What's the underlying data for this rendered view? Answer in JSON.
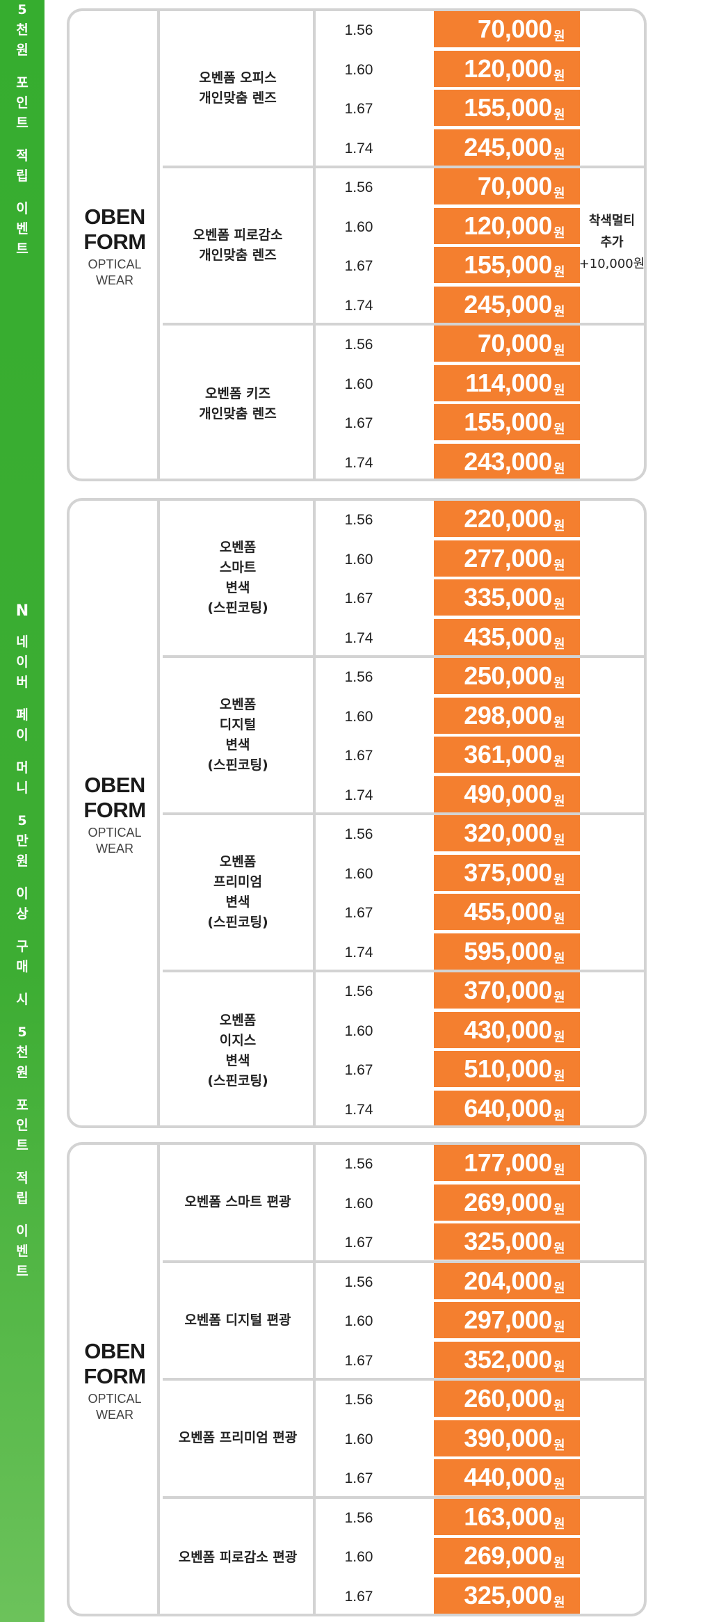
{
  "banner_top": [
    "5",
    "천",
    "원",
    "",
    "포",
    "인",
    "트",
    "",
    "적",
    "립",
    "",
    "이",
    "벤",
    "트"
  ],
  "banner_logo": "N",
  "banner_bottom": [
    "네",
    "이",
    "버",
    "",
    "페",
    "이",
    "",
    "머",
    "니",
    "",
    "5",
    "만",
    "원",
    "",
    "이",
    "상",
    "",
    "구",
    "매",
    "",
    "시",
    "",
    "5",
    "천",
    "원",
    "",
    "포",
    "인",
    "트",
    "",
    "적",
    "립",
    "",
    "이",
    "벤",
    "트"
  ],
  "sections": [
    {
      "brand": {
        "line1": "OBEN",
        "line2": "FORM",
        "line3": "OPTICAL",
        "line4": "WEAR"
      },
      "groups": [
        {
          "name": "오벤폼 오피스\n개인맞춤 렌즈",
          "rows": [
            {
              "index": "1.56",
              "price": "70,000"
            },
            {
              "index": "1.60",
              "price": "120,000"
            },
            {
              "index": "1.67",
              "price": "155,000"
            },
            {
              "index": "1.74",
              "price": "245,000"
            }
          ]
        },
        {
          "name": "오벤폼 피로감소\n개인맞춤 렌즈",
          "rows": [
            {
              "index": "1.56",
              "price": "70,000"
            },
            {
              "index": "1.60",
              "price": "120,000"
            },
            {
              "index": "1.67",
              "price": "155,000"
            },
            {
              "index": "1.74",
              "price": "245,000"
            }
          ]
        },
        {
          "name": "오벤폼 키즈\n개인맞춤 렌즈",
          "rows": [
            {
              "index": "1.56",
              "price": "70,000"
            },
            {
              "index": "1.60",
              "price": "114,000"
            },
            {
              "index": "1.67",
              "price": "155,000"
            },
            {
              "index": "1.74",
              "price": "243,000"
            }
          ]
        }
      ]
    },
    {
      "brand": {
        "line1": "OBEN",
        "line2": "FORM",
        "line3": "OPTICAL",
        "line4": "WEAR"
      },
      "groups": [
        {
          "name": "오벤폼\n스마트\n변색\n(스핀코팅)",
          "rows": [
            {
              "index": "1.56",
              "price": "220,000"
            },
            {
              "index": "1.60",
              "price": "277,000"
            },
            {
              "index": "1.67",
              "price": "335,000"
            },
            {
              "index": "1.74",
              "price": "435,000"
            }
          ]
        },
        {
          "name": "오벤폼\n디지털\n변색\n(스핀코팅)",
          "rows": [
            {
              "index": "1.56",
              "price": "250,000"
            },
            {
              "index": "1.60",
              "price": "298,000"
            },
            {
              "index": "1.67",
              "price": "361,000"
            },
            {
              "index": "1.74",
              "price": "490,000"
            }
          ]
        },
        {
          "name": "오벤폼\n프리미엄\n변색\n(스핀코팅)",
          "rows": [
            {
              "index": "1.56",
              "price": "320,000"
            },
            {
              "index": "1.60",
              "price": "375,000"
            },
            {
              "index": "1.67",
              "price": "455,000"
            },
            {
              "index": "1.74",
              "price": "595,000"
            }
          ]
        },
        {
          "name": "오벤폼\n이지스\n변색\n(스핀코팅)",
          "rows": [
            {
              "index": "1.56",
              "price": "370,000"
            },
            {
              "index": "1.60",
              "price": "430,000"
            },
            {
              "index": "1.67",
              "price": "510,000"
            },
            {
              "index": "1.74",
              "price": "640,000"
            }
          ]
        }
      ]
    },
    {
      "brand": {
        "line1": "OBEN",
        "line2": "FORM",
        "line3": "OPTICAL",
        "line4": "WEAR"
      },
      "groups": [
        {
          "name": "오벤폼 스마트 편광",
          "rows": [
            {
              "index": "1.56",
              "price": "177,000"
            },
            {
              "index": "1.60",
              "price": "269,000"
            },
            {
              "index": "1.67",
              "price": "325,000"
            }
          ]
        },
        {
          "name": "오벤폼 디지털 편광",
          "rows": [
            {
              "index": "1.56",
              "price": "204,000"
            },
            {
              "index": "1.60",
              "price": "297,000"
            },
            {
              "index": "1.67",
              "price": "352,000"
            }
          ]
        },
        {
          "name": "오벤폼 프리미엄 편광",
          "rows": [
            {
              "index": "1.56",
              "price": "260,000"
            },
            {
              "index": "1.60",
              "price": "390,000"
            },
            {
              "index": "1.67",
              "price": "440,000"
            }
          ]
        },
        {
          "name": "오벤폼 피로감소 편광",
          "rows": [
            {
              "index": "1.56",
              "price": "163,000"
            },
            {
              "index": "1.60",
              "price": "269,000"
            },
            {
              "index": "1.67",
              "price": "325,000"
            }
          ]
        }
      ]
    }
  ],
  "currency": "원",
  "side_note": {
    "line1": "착색멀티",
    "line2": "추가",
    "line3": "+10,000원"
  },
  "colors": {
    "banner_green": "#3dad33",
    "price_orange": "#f47f2f",
    "border_gray": "#d3d3d3"
  }
}
